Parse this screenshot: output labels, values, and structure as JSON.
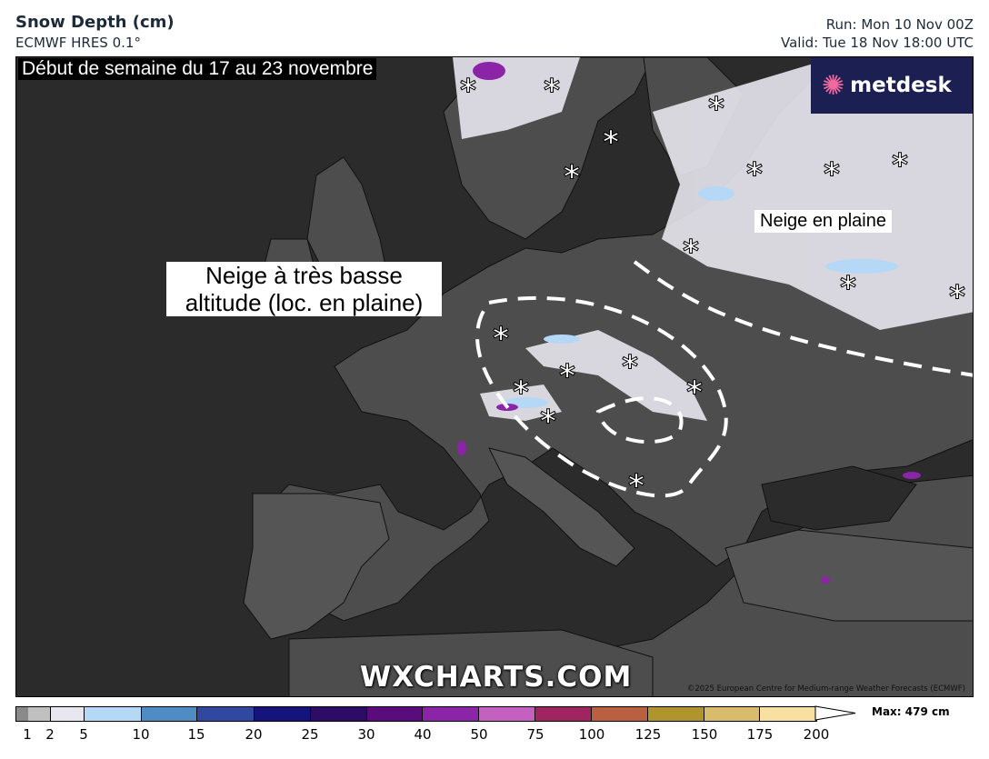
{
  "header": {
    "title": "Snow Depth (cm)",
    "model": "ECMWF HRES 0.1°",
    "run": "Run: Mon 10 Nov 00Z",
    "valid": "Valid: Tue 18 Nov 18:00 UTC"
  },
  "map": {
    "banner": "Début de semaine du 17 au 23 novembre",
    "annotation_low_altitude": "Neige à très basse altitude (loc. en plaine)",
    "annotation_plains": "Neige en plaine",
    "logo": "metdesk",
    "watermark": "WXCHARTS.COM",
    "copyright": "©2025 European Centre for Medium-range Weather Forecasts (ECMWF)",
    "colors": {
      "sea": "#2b2b2b",
      "land": "#4d4d4d",
      "snow": "#e8e6ee"
    }
  },
  "legend": {
    "max_label": "Max: 479 cm",
    "ticks": [
      "1",
      "2",
      "5",
      "10",
      "15",
      "20",
      "25",
      "30",
      "40",
      "50",
      "75",
      "100",
      "125",
      "150",
      "175",
      "200"
    ],
    "colors": [
      "#8a8a8a",
      "#c0c0c0",
      "#e8e6ee",
      "#b4d8f6",
      "#4f8cc4",
      "#3048a0",
      "#14147c",
      "#2c0c64",
      "#5a0c7c",
      "#8c24a8",
      "#c460c0",
      "#a02460",
      "#b86040",
      "#b0942c",
      "#d8bc6c",
      "#f8e0a0"
    ]
  }
}
